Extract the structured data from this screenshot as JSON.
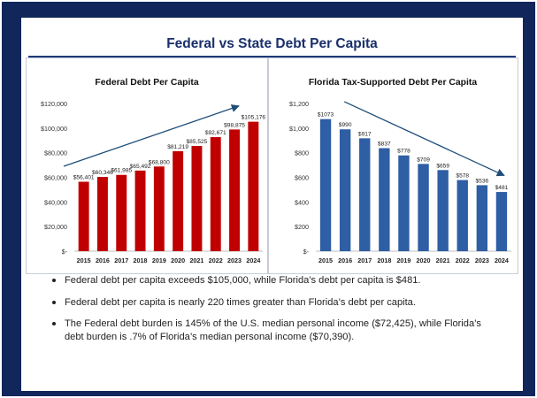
{
  "page_title": "Federal vs State Debt Per Capita",
  "colors": {
    "frame": "#11265a",
    "federal_bar": "#c00000",
    "florida_bar": "#2e5ea4",
    "trend_arrow": "#1f4e79"
  },
  "chart_data": [
    {
      "type": "bar",
      "title": "Federal Debt Per Capita",
      "categories": [
        "2015",
        "2016",
        "2017",
        "2018",
        "2019",
        "2020",
        "2021",
        "2022",
        "2023",
        "2024"
      ],
      "values": [
        56401,
        60346,
        61985,
        65492,
        68800,
        81219,
        85525,
        92671,
        98875,
        105176
      ],
      "data_labels": [
        "$56,401",
        "$60,346",
        "$61,985",
        "$65,492",
        "$68,800",
        "$81,219",
        "$85,525",
        "$92,671",
        "$98,875",
        "$105,176"
      ],
      "ylim": [
        0,
        120000
      ],
      "yticks": [
        0,
        20000,
        40000,
        60000,
        80000,
        100000,
        120000
      ],
      "ytick_labels": [
        "$-",
        "$20,000",
        "$40,000",
        "$60,000",
        "$80,000",
        "$100,000",
        "$120,000"
      ],
      "grid": false,
      "trend_arrow": "upward"
    },
    {
      "type": "bar",
      "title": "Florida Tax-Supported Debt Per Capita",
      "categories": [
        "2015",
        "2016",
        "2017",
        "2018",
        "2019",
        "2020",
        "2021",
        "2022",
        "2023",
        "2024"
      ],
      "values": [
        1073,
        990,
        917,
        837,
        778,
        709,
        659,
        578,
        536,
        481
      ],
      "data_labels": [
        "$1073",
        "$990",
        "$917",
        "$837",
        "$778",
        "$709",
        "$659",
        "$578",
        "$536",
        "$481"
      ],
      "ylim": [
        0,
        1200
      ],
      "yticks": [
        0,
        200,
        400,
        600,
        800,
        1000,
        1200
      ],
      "ytick_labels": [
        "$-",
        "$200",
        "$400",
        "$600",
        "$800",
        "$1,000",
        "$1,200"
      ],
      "grid": false,
      "trend_arrow": "downward"
    }
  ],
  "bullets": [
    "Federal debt per capita exceeds $105,000, while Florida’s debt per capita is $481.",
    "Federal debt per capita is nearly 220 times greater than Florida’s debt per capita.",
    "The Federal debt burden is 145% of the U.S. median personal income ($72,425), while Florida’s debt burden is .7% of Florida’s median personal income ($70,390)."
  ]
}
